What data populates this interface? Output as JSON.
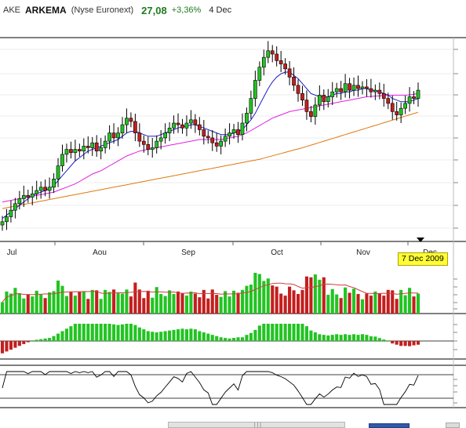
{
  "header": {
    "symbol": "AKE",
    "name": "ARKEMA",
    "exchange": "(Nyse Euronext)",
    "price": "27,08",
    "change": "+3,36%",
    "date": "4 Dec"
  },
  "cursor_date": "7 Dec 2009",
  "colors": {
    "up_candle": "#22c422",
    "down_candle": "#c41e1e",
    "sma_short": "#1f1fc8",
    "sma_mid": "#e020e0",
    "sma_long": "#e07810",
    "volume_avg": "#d04040"
  },
  "chart_data": {
    "type": "line",
    "months": [
      "Jul",
      "Aou",
      "Sep",
      "Oct",
      "Nov",
      "Dec"
    ],
    "price_series": [
      18.2,
      18.5,
      18.9,
      19.3,
      19.6,
      19.8,
      19.7,
      19.9,
      20.1,
      20.3,
      20.1,
      20.3,
      20.8,
      21.6,
      22.3,
      22.6,
      22.4,
      22.6,
      22.5,
      22.8,
      22.7,
      23.0,
      22.5,
      22.7,
      23.1,
      23.6,
      23.3,
      23.6,
      24.1,
      24.5,
      24.3,
      23.6,
      23.1,
      22.9,
      22.6,
      22.7,
      23.1,
      23.3,
      23.6,
      23.9,
      24.2,
      24.1,
      23.9,
      24.2,
      24.4,
      24.1,
      23.8,
      23.4,
      23.3,
      23.0,
      22.8,
      23.1,
      23.4,
      23.6,
      23.8,
      23.5,
      24.2,
      24.8,
      25.7,
      26.8,
      27.6,
      28.2,
      28.6,
      28.4,
      28.0,
      27.8,
      27.5,
      27.0,
      26.5,
      26.0,
      25.6,
      24.9,
      24.6,
      25.3,
      25.9,
      25.5,
      25.8,
      26.1,
      26.3,
      26.1,
      26.6,
      26.2,
      26.5,
      26.3,
      26.4,
      26.3,
      26.1,
      26.2,
      26.0,
      25.7,
      25.4,
      24.9,
      24.7,
      25.1,
      25.4,
      25.8,
      25.7,
      26.2
    ],
    "sma_short": [
      18.4,
      18.6,
      18.8,
      19.0,
      19.2,
      19.4,
      19.6,
      19.8,
      19.9,
      20.0,
      20.1,
      20.2,
      20.4,
      20.7,
      21.0,
      21.3,
      21.6,
      21.9,
      22.1,
      22.3,
      22.5,
      22.6,
      22.7,
      22.8,
      22.9,
      23.0,
      23.1,
      23.2,
      23.4,
      23.6,
      23.7,
      23.7,
      23.6,
      23.5,
      23.4,
      23.4,
      23.4,
      23.5,
      23.6,
      23.7,
      23.8,
      23.9,
      24.0,
      24.0,
      24.1,
      24.1,
      24.0,
      23.9,
      23.8,
      23.7,
      23.6,
      23.5,
      23.5,
      23.5,
      23.6,
      23.7,
      23.8,
      24.1,
      24.4,
      24.8,
      25.3,
      25.8,
      26.3,
      26.7,
      27.0,
      27.2,
      27.3,
      27.3,
      27.1,
      26.9,
      26.6,
      26.3,
      26.0,
      25.9,
      25.8,
      25.8,
      25.8,
      25.9,
      26.0,
      26.0,
      26.1,
      26.1,
      26.2,
      26.2,
      26.3,
      26.3,
      26.2,
      26.2,
      26.1,
      26.0,
      25.9,
      25.7,
      25.6,
      25.5,
      25.5,
      25.5,
      25.6,
      25.7
    ],
    "sma_mid": [
      19.4,
      19.45,
      19.5,
      19.55,
      19.6,
      19.65,
      19.7,
      19.75,
      19.8,
      19.85,
      19.9,
      19.95,
      20.0,
      20.1,
      20.2,
      20.3,
      20.4,
      20.5,
      20.65,
      20.8,
      20.95,
      21.1,
      21.2,
      21.3,
      21.45,
      21.6,
      21.75,
      21.9,
      22.05,
      22.2,
      22.3,
      22.4,
      22.5,
      22.55,
      22.6,
      22.65,
      22.7,
      22.75,
      22.8,
      22.85,
      22.9,
      22.95,
      23.0,
      23.05,
      23.1,
      23.15,
      23.2,
      23.2,
      23.2,
      23.2,
      23.2,
      23.2,
      23.25,
      23.3,
      23.35,
      23.4,
      23.5,
      23.6,
      23.75,
      23.9,
      24.05,
      24.2,
      24.35,
      24.5,
      24.6,
      24.7,
      24.8,
      24.9,
      24.95,
      25.0,
      25.05,
      25.1,
      25.15,
      25.2,
      25.25,
      25.3,
      25.35,
      25.4,
      25.45,
      25.5,
      25.55,
      25.6,
      25.65,
      25.7,
      25.75,
      25.8,
      25.82,
      25.84,
      25.86,
      25.88,
      25.9,
      25.9,
      25.9,
      25.9,
      25.9,
      25.92,
      25.95,
      26.0
    ],
    "sma_long": [
      19.0,
      19.05,
      19.1,
      19.15,
      19.2,
      19.25,
      19.3,
      19.35,
      19.4,
      19.45,
      19.5,
      19.55,
      19.6,
      19.65,
      19.7,
      19.75,
      19.8,
      19.85,
      19.9,
      19.95,
      20.0,
      20.05,
      20.1,
      20.15,
      20.2,
      20.25,
      20.3,
      20.35,
      20.4,
      20.45,
      20.5,
      20.55,
      20.6,
      20.65,
      20.7,
      20.75,
      20.8,
      20.85,
      20.9,
      20.95,
      21.0,
      21.05,
      21.1,
      21.15,
      21.2,
      21.25,
      21.3,
      21.35,
      21.4,
      21.45,
      21.5,
      21.55,
      21.6,
      21.65,
      21.7,
      21.75,
      21.8,
      21.85,
      21.9,
      21.95,
      22.0,
      22.07,
      22.14,
      22.21,
      22.28,
      22.35,
      22.42,
      22.49,
      22.56,
      22.63,
      22.7,
      22.78,
      22.86,
      22.94,
      23.02,
      23.1,
      23.18,
      23.26,
      23.34,
      23.42,
      23.5,
      23.58,
      23.66,
      23.74,
      23.82,
      23.9,
      23.98,
      24.06,
      24.14,
      24.22,
      24.3,
      24.38,
      24.46,
      24.54,
      24.62,
      24.7,
      24.78,
      24.86
    ],
    "volume_scale_max": 100,
    "macd_range": [
      -1,
      1
    ],
    "osc_range": [
      0,
      100
    ]
  }
}
